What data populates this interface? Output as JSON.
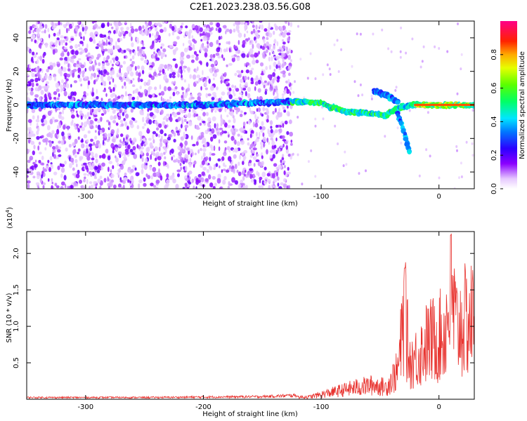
{
  "title": "C2E1.2023.238.03.56.G08",
  "chart_data": [
    {
      "type": "heatmap",
      "xlabel": "Height of straight line (km)",
      "ylabel": "Frequency (Hz)",
      "xlim": [
        -350,
        30
      ],
      "ylim": [
        -50,
        50
      ],
      "xticks": [
        -300,
        -200,
        -100,
        0
      ],
      "yticks": [
        -40,
        -20,
        0,
        20,
        40
      ],
      "colorbar": {
        "label": "Normalized spectral amplitude",
        "range": [
          0,
          1
        ],
        "ticks": [
          0.0,
          0.2,
          0.4,
          0.6,
          0.8
        ],
        "colormap": "rainbow (white-violet-blue-cyan-green-yellow-red-magenta)"
      },
      "ridge": {
        "description": "dominant frequency track",
        "points": [
          {
            "x": -350,
            "y": 0
          },
          {
            "x": -200,
            "y": 0
          },
          {
            "x": -120,
            "y": 2
          },
          {
            "x": -100,
            "y": 1
          },
          {
            "x": -80,
            "y": -4
          },
          {
            "x": -60,
            "y": -5
          },
          {
            "x": -45,
            "y": -6
          },
          {
            "x": -35,
            "y": -2
          },
          {
            "x": -20,
            "y": 0
          },
          {
            "x": 0,
            "y": 0
          },
          {
            "x": 30,
            "y": 0
          }
        ]
      },
      "branches": [
        {
          "points": [
            {
              "x": -55,
              "y": 8
            },
            {
              "x": -45,
              "y": 6
            },
            {
              "x": -35,
              "y": 2
            }
          ]
        },
        {
          "points": [
            {
              "x": -35,
              "y": -6
            },
            {
              "x": -30,
              "y": -15
            },
            {
              "x": -25,
              "y": -28
            }
          ]
        }
      ],
      "noise_region": {
        "x_from": -350,
        "x_to": -125,
        "note": "broadband scattered energy"
      },
      "grid": false
    },
    {
      "type": "line",
      "xlabel": "Height of straight line (km)",
      "ylabel": "SNR (10 * v/v)",
      "y_multiplier": "(x10⁴)",
      "y_multiplier_base": "(x10",
      "y_multiplier_exp": "4",
      "y_multiplier_close": ")",
      "xlim": [
        -350,
        30
      ],
      "ylim": [
        0,
        2.3
      ],
      "xticks": [
        -300,
        -200,
        -100,
        0
      ],
      "yticks": [
        0.5,
        1.0,
        1.5,
        2.0
      ],
      "color": "#e8322e",
      "series": [
        {
          "values_description": "noisy SNR curve, flat near zero until about -120 km then rising",
          "envelope": [
            {
              "x": -350,
              "y": 0.02
            },
            {
              "x": -250,
              "y": 0.02
            },
            {
              "x": -150,
              "y": 0.03
            },
            {
              "x": -110,
              "y": 0.05
            },
            {
              "x": -90,
              "y": 0.15
            },
            {
              "x": -70,
              "y": 0.25
            },
            {
              "x": -55,
              "y": 0.3
            },
            {
              "x": -45,
              "y": 0.25
            },
            {
              "x": -35,
              "y": 0.6
            },
            {
              "x": -29,
              "y": 1.8
            },
            {
              "x": -25,
              "y": 0.8
            },
            {
              "x": -18,
              "y": 0.9
            },
            {
              "x": -10,
              "y": 1.2
            },
            {
              "x": 0,
              "y": 1.3
            },
            {
              "x": 5,
              "y": 1.4
            },
            {
              "x": 10,
              "y": 2.25
            },
            {
              "x": 15,
              "y": 1.5
            },
            {
              "x": 20,
              "y": 1.6
            },
            {
              "x": 30,
              "y": 1.7
            }
          ]
        }
      ],
      "grid": false
    }
  ]
}
